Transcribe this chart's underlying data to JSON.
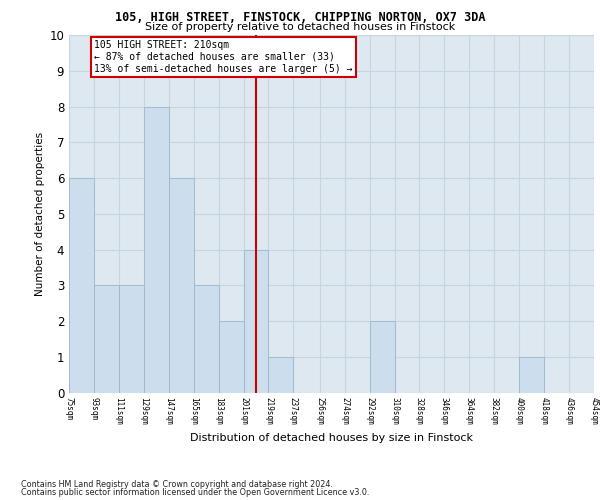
{
  "title_line1": "105, HIGH STREET, FINSTOCK, CHIPPING NORTON, OX7 3DA",
  "title_line2": "Size of property relative to detached houses in Finstock",
  "xlabel": "Distribution of detached houses by size in Finstock",
  "ylabel": "Number of detached properties",
  "footer_line1": "Contains HM Land Registry data © Crown copyright and database right 2024.",
  "footer_line2": "Contains public sector information licensed under the Open Government Licence v3.0.",
  "bins": [
    75,
    93,
    111,
    129,
    147,
    165,
    183,
    201,
    219,
    237,
    256,
    274,
    292,
    310,
    328,
    346,
    364,
    382,
    400,
    418,
    436
  ],
  "counts": [
    6,
    3,
    3,
    8,
    6,
    3,
    2,
    4,
    1,
    0,
    0,
    0,
    2,
    0,
    0,
    0,
    0,
    0,
    1,
    0
  ],
  "bar_color": "#ccdded",
  "bar_edge_color": "#9ab8cc",
  "subject_value": 210,
  "vline_color": "#cc0000",
  "annotation_text": "105 HIGH STREET: 210sqm\n← 87% of detached houses are smaller (33)\n13% of semi-detached houses are larger (5) →",
  "annotation_box_color": "#ffffff",
  "annotation_box_edge_color": "#cc0000",
  "ylim": [
    0,
    10
  ],
  "yticks": [
    0,
    1,
    2,
    3,
    4,
    5,
    6,
    7,
    8,
    9,
    10
  ],
  "grid_color": "#c8d4de",
  "bg_color": "#dde8f0"
}
